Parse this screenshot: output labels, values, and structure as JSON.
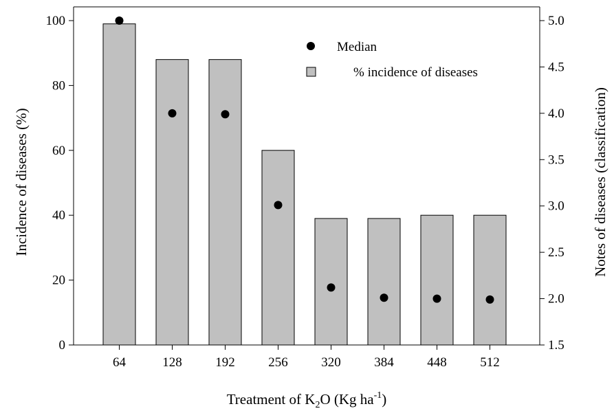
{
  "chart_data": {
    "type": "bar",
    "categories": [
      "64",
      "128",
      "192",
      "256",
      "320",
      "384",
      "448",
      "512"
    ],
    "series": [
      {
        "name": "% incidence of diseases",
        "axis": "left",
        "kind": "bar",
        "values": [
          99,
          88,
          88,
          60,
          39,
          39,
          40,
          40
        ]
      },
      {
        "name": "Median",
        "axis": "right",
        "kind": "scatter",
        "values": [
          5.0,
          4.0,
          3.99,
          3.01,
          2.12,
          2.01,
          2.0,
          1.99
        ]
      }
    ],
    "xlabel": {
      "prefix": "Treatment of K",
      "sub": "2",
      "middle": "O (Kg ha",
      "sup": "-1",
      "suffix": ")"
    },
    "ylabel": "Incidence of diseases (%)",
    "y2label": "Notes of diseases (classification)",
    "ylim": [
      0,
      100
    ],
    "y2lim": [
      1.5,
      5.0
    ],
    "yticks": [
      "0",
      "20",
      "40",
      "60",
      "80",
      "100"
    ],
    "y2ticks": [
      "1.5",
      "2.0",
      "2.5",
      "3.0",
      "3.5",
      "4.0",
      "4.5",
      "5.0"
    ],
    "legend": {
      "position": "top-right",
      "entries": [
        "Median",
        "% incidence of diseases"
      ]
    },
    "grid": false,
    "colors": {
      "bar_fill": "#c0c0c0",
      "bar_stroke": "#000000",
      "marker": "#000000"
    }
  }
}
